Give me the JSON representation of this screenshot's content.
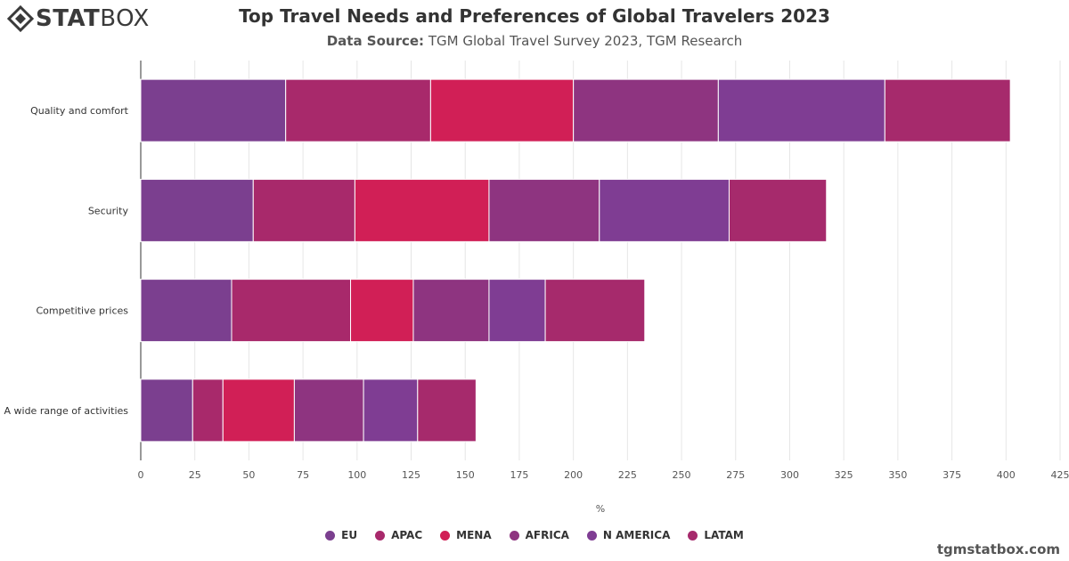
{
  "brand": {
    "logo_text_bold": "STAT",
    "logo_text_light": "BOX",
    "footer": "tgmstatbox.com"
  },
  "header": {
    "title": "Top Travel Needs and Preferences of Global Travelers 2023",
    "source_label": "Data Source:",
    "source_value": "TGM Global Travel Survey 2023, TGM Research"
  },
  "chart_data": {
    "type": "bar",
    "orientation": "horizontal",
    "stacked": true,
    "categories": [
      "Quality and comfort",
      "Security",
      "Competitive prices",
      "A wide range of activities"
    ],
    "series": [
      {
        "name": "EU",
        "color": "#7B3F8F",
        "values": [
          67,
          52,
          42,
          24
        ]
      },
      {
        "name": "APAC",
        "color": "#A8296B",
        "values": [
          67,
          47,
          55,
          14
        ]
      },
      {
        "name": "MENA",
        "color": "#D11F56",
        "values": [
          66,
          62,
          29,
          33
        ]
      },
      {
        "name": "AFRICA",
        "color": "#8E3480",
        "values": [
          67,
          51,
          35,
          32
        ]
      },
      {
        "name": "N AMERICA",
        "color": "#7F3D93",
        "values": [
          77,
          60,
          26,
          25
        ]
      },
      {
        "name": "LATAM",
        "color": "#A62A6C",
        "values": [
          58,
          45,
          46,
          27
        ]
      }
    ],
    "xlabel": "%",
    "xlim": [
      0,
      425
    ],
    "xticks": [
      0,
      25,
      50,
      75,
      100,
      125,
      150,
      175,
      200,
      225,
      250,
      275,
      300,
      325,
      350,
      375,
      400,
      425
    ],
    "grid": true,
    "legend_position": "bottom-center"
  }
}
